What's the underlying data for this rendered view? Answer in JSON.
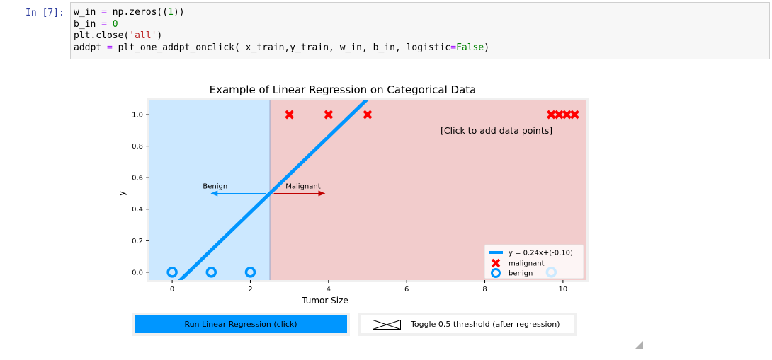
{
  "cell": {
    "prompt": "In [7]:",
    "code_lines": [
      "w_in = np.zeros((1))",
      "b_in = 0",
      "plt.close('all')",
      "addpt = plt_one_addpt_onclick( x_train,y_train, w_in, b_in, logistic=False)"
    ]
  },
  "chart_data": {
    "type": "scatter",
    "title": "Example of Linear Regression on Categorical Data",
    "xlabel": "Tumor Size",
    "ylabel": "y",
    "xlim": [
      -0.6,
      10.6
    ],
    "ylim": [
      -0.05,
      1.09
    ],
    "xticks": [
      0,
      2,
      4,
      6,
      8,
      10
    ],
    "yticks": [
      0.0,
      0.2,
      0.4,
      0.6,
      0.8,
      1.0
    ],
    "ytick_labels": [
      "0.0",
      "0.2",
      "0.4",
      "0.6",
      "0.8",
      "1.0"
    ],
    "grid": false,
    "legend_position": "lower-right",
    "threshold_x": 2.5,
    "regions": [
      {
        "name": "benign-region",
        "x_from": -0.6,
        "x_to": 2.5,
        "color": "#cce8ff"
      },
      {
        "name": "malignant-region",
        "x_from": 2.5,
        "x_to": 10.6,
        "color": "#f2cccc"
      }
    ],
    "annotations": {
      "click_hint": "[Click to add data points]",
      "benign_label": "Benign",
      "malignant_label": "Malignant",
      "arrow_y": 0.5,
      "benign_arrow": {
        "from": 2.4,
        "to": 1.0
      },
      "malignant_arrow": {
        "from": 2.6,
        "to": 3.9
      }
    },
    "line": {
      "name": "y = 0.24x+(-0.10)",
      "slope": 0.24,
      "intercept": -0.1,
      "color": "#0096ff"
    },
    "series": [
      {
        "name": "malignant",
        "marker": "x",
        "color": "#ff0000",
        "points": [
          [
            3,
            1
          ],
          [
            4,
            1
          ],
          [
            5,
            1
          ],
          [
            9.7,
            1
          ],
          [
            9.9,
            1
          ],
          [
            10.1,
            1
          ],
          [
            10.3,
            1
          ]
        ]
      },
      {
        "name": "benign",
        "marker": "o",
        "color": "#0096ff",
        "points": [
          [
            0,
            0
          ],
          [
            1,
            0
          ],
          [
            2,
            0
          ],
          [
            9.7,
            0
          ]
        ]
      }
    ]
  },
  "controls": {
    "run_button_label": "Run Linear Regression (click)",
    "toggle_label": "Toggle 0.5 threshold (after regression)"
  },
  "colors": {
    "accent": "#0096ff",
    "malignant": "#ff0000",
    "button_frame": "#f0f0f0"
  }
}
